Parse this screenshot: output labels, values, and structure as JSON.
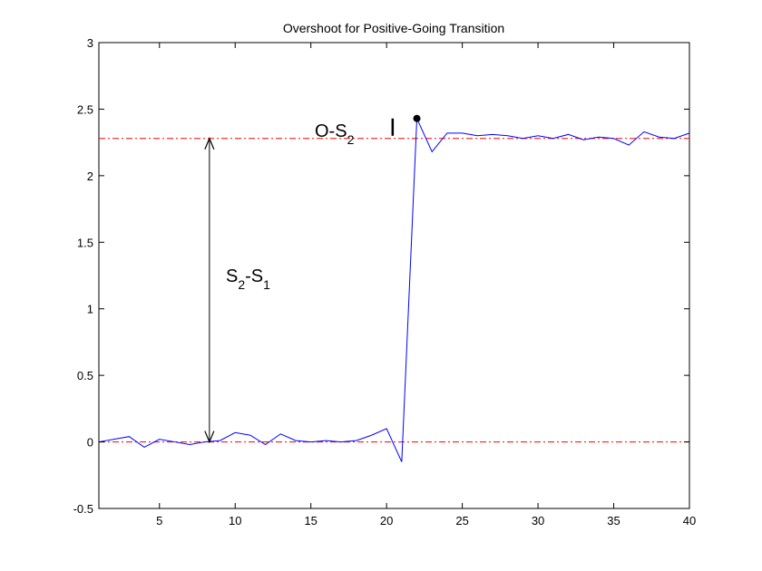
{
  "chart_data": {
    "type": "line",
    "title": "Overshoot for Positive-Going Transition",
    "xlabel": "",
    "ylabel": "",
    "xlim": [
      1,
      40
    ],
    "ylim": [
      -0.5,
      3
    ],
    "xticks": [
      5,
      10,
      15,
      20,
      25,
      30,
      35,
      40
    ],
    "xtick_labels": [
      "5",
      "10",
      "15",
      "20",
      "25",
      "30",
      "35",
      "40"
    ],
    "yticks": [
      -0.5,
      0,
      0.5,
      1,
      1.5,
      2,
      2.5,
      3
    ],
    "ytick_labels": [
      "-0.5",
      "0",
      "0.5",
      "1",
      "1.5",
      "2",
      "2.5",
      "3"
    ],
    "grid": false,
    "series": [
      {
        "color": "#0000ff",
        "x": [
          1,
          2,
          3,
          4,
          5,
          6,
          7,
          8,
          9,
          10,
          11,
          12,
          13,
          14,
          15,
          16,
          17,
          18,
          19,
          20,
          21,
          22,
          23,
          24,
          25,
          26,
          27,
          28,
          29,
          30,
          31,
          32,
          33,
          34,
          35,
          36,
          37,
          38,
          39,
          40
        ],
        "y": [
          0.0,
          0.02,
          0.04,
          -0.04,
          0.02,
          0.0,
          -0.02,
          0.0,
          0.01,
          0.07,
          0.05,
          -0.02,
          0.06,
          0.01,
          0.0,
          0.01,
          0.0,
          0.01,
          0.05,
          0.1,
          -0.15,
          2.43,
          2.18,
          2.32,
          2.32,
          2.3,
          2.31,
          2.3,
          2.28,
          2.3,
          2.28,
          2.31,
          2.27,
          2.29,
          2.28,
          2.23,
          2.33,
          2.29,
          2.28,
          2.32
        ]
      }
    ],
    "reference_lines": [
      {
        "y": 2.28,
        "color": "#ff0000",
        "style": "dash-dot"
      },
      {
        "y": 0.0,
        "color": "#ff0000",
        "style": "dash-dot"
      }
    ],
    "marker": {
      "x": 22,
      "y": 2.43
    },
    "arrow": {
      "x": 8.3,
      "y_from": 0.0,
      "y_to": 2.28
    },
    "bar_marker": {
      "x": 20.4,
      "y_from": 2.3,
      "y_to": 2.43
    },
    "annotations": {
      "overshoot": {
        "main": "O-S",
        "sub": "2"
      },
      "step": {
        "s2": "S",
        "sub2": "2",
        "dash": "-S",
        "sub1": "1"
      }
    }
  }
}
